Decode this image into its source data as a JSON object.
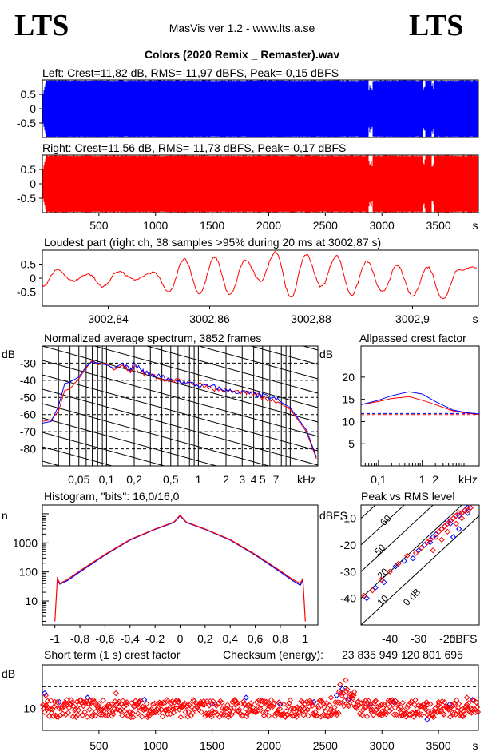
{
  "header": {
    "logo_left": "LTS",
    "logo_right": "LTS",
    "version": "MasVis ver 1.2 - www.lts.a.se",
    "filename": "Colors (2020 Remix _ Remaster).wav"
  },
  "colors": {
    "left": "#0000ff",
    "right": "#ff0000",
    "grid": "#000000"
  },
  "chart_data": [
    {
      "type": "area",
      "id": "left_waveform",
      "title": "Left: Crest=11,82 dB, RMS=-11,97 dBFS, Peak=-0,15 dBFS",
      "ytick_labels": [
        "0.5",
        "0",
        "-0.5"
      ],
      "ylim": [
        -1,
        1
      ],
      "xlim": [
        0,
        3852
      ],
      "gaps_s": [
        [
          2880,
          2920
        ],
        [
          3360,
          3380
        ],
        [
          3440,
          3460
        ]
      ]
    },
    {
      "type": "area",
      "id": "right_waveform",
      "title": "Right: Crest=11,56 dB, RMS=-11,73 dBFS, Peak=-0,17 dBFS",
      "ytick_labels": [
        "0.5",
        "0",
        "-0.5"
      ],
      "xtick_labels": [
        "500",
        "1000",
        "1500",
        "2000",
        "2500",
        "3000",
        "3500",
        "s"
      ],
      "xticks": [
        500,
        1000,
        1500,
        2000,
        2500,
        3000,
        3500
      ],
      "ylim": [
        -1,
        1
      ],
      "xlim": [
        0,
        3852
      ]
    },
    {
      "type": "line",
      "id": "loudest_part",
      "title": "Loudest part (right ch, 38 samples >95% during 20 ms at 3002,87 s)",
      "ytick_labels": [
        "0.5",
        "0",
        "-0.5"
      ],
      "xtick_labels": [
        "3002,84",
        "3002,86",
        "3002,88",
        "3002,9",
        "s"
      ],
      "xticks": [
        3002.84,
        3002.86,
        3002.88,
        3002.9
      ],
      "xlim": [
        3002.827,
        3002.913
      ],
      "ylim": [
        -1,
        1
      ],
      "series": [
        {
          "x": [
            3002.827,
            3002.83,
            3002.833,
            3002.836,
            3002.839,
            3002.842,
            3002.845,
            3002.849,
            3002.852,
            3002.855,
            3002.858,
            3002.861,
            3002.864,
            3002.867,
            3002.87,
            3002.873,
            3002.876,
            3002.879,
            3002.882,
            3002.885,
            3002.888,
            3002.891,
            3002.894,
            3002.897,
            3002.9,
            3002.903,
            3002.906,
            3002.909,
            3002.913
          ],
          "values": [
            -0.3,
            0.3,
            -0.1,
            0.15,
            -0.3,
            0.25,
            -0.05,
            0.2,
            -0.5,
            0.7,
            -0.55,
            0.75,
            -0.6,
            0.65,
            -0.1,
            0.95,
            -0.7,
            0.85,
            -0.3,
            0.8,
            -0.6,
            0.6,
            -0.5,
            0.45,
            -0.65,
            0.4,
            -0.75,
            0.3,
            0.4
          ]
        }
      ]
    },
    {
      "type": "line",
      "id": "spectrum",
      "title": "Normalized average spectrum, 3852 frames",
      "ylabel": "dB",
      "xlabel": "kHz",
      "xscale": "log",
      "xlim": [
        0.02,
        20
      ],
      "ylim": [
        -90,
        -20
      ],
      "ytick_labels": [
        "-30",
        "-40",
        "-50",
        "-60",
        "-70",
        "-80"
      ],
      "yticks": [
        -30,
        -40,
        -50,
        -60,
        -70,
        -80
      ],
      "xtick_labels": [
        "0,05",
        "0,1",
        "0,2",
        "0,5",
        "1",
        "2",
        "3",
        "4",
        "5",
        "7",
        "kHz"
      ],
      "xticks": [
        0.05,
        0.1,
        0.2,
        0.5,
        1,
        2,
        3,
        4,
        5,
        7
      ],
      "series": [
        {
          "color": "right",
          "x": [
            0.02,
            0.025,
            0.03,
            0.035,
            0.04,
            0.05,
            0.06,
            0.07,
            0.08,
            0.1,
            0.12,
            0.15,
            0.18,
            0.2,
            0.25,
            0.3,
            0.4,
            0.5,
            0.7,
            1,
            1.5,
            2,
            3,
            4,
            5,
            7,
            10,
            15,
            20
          ],
          "values": [
            -64,
            -63,
            -58,
            -46,
            -45,
            -39,
            -33,
            -28,
            -31,
            -30,
            -34,
            -31,
            -35,
            -32,
            -36,
            -37,
            -39,
            -40,
            -41,
            -42,
            -45,
            -46,
            -47,
            -48,
            -50,
            -52,
            -57,
            -70,
            -88
          ]
        },
        {
          "color": "left",
          "x": [
            0.02,
            0.025,
            0.03,
            0.035,
            0.04,
            0.05,
            0.06,
            0.07,
            0.08,
            0.1,
            0.12,
            0.15,
            0.18,
            0.2,
            0.25,
            0.3,
            0.4,
            0.5,
            0.7,
            1,
            1.5,
            2,
            3,
            4,
            5,
            7,
            10,
            15,
            20
          ],
          "values": [
            -65,
            -64,
            -55,
            -42,
            -41,
            -38,
            -32,
            -29,
            -30,
            -31,
            -33,
            -30,
            -34,
            -30,
            -35,
            -37,
            -38,
            -40,
            -41,
            -43,
            -44,
            -46,
            -47,
            -48,
            -49,
            -51,
            -56,
            -69,
            -87
          ]
        }
      ]
    },
    {
      "type": "line",
      "id": "allpassed_crest",
      "title": "Allpassed crest factor",
      "ylabel": "dB",
      "xlabel": "kHz",
      "xscale": "log",
      "xlim": [
        0.04,
        20
      ],
      "ylim": [
        0,
        27
      ],
      "ytick_labels": [
        "20",
        "15",
        "10",
        "5"
      ],
      "yticks": [
        20,
        15,
        10,
        5
      ],
      "xtick_labels": [
        "0,1",
        "1",
        "2",
        "kHz"
      ],
      "xticks": [
        0.1,
        1,
        2
      ],
      "series": [
        {
          "color": "right",
          "x": [
            0.04,
            0.1,
            0.2,
            0.5,
            1,
            2,
            5,
            10,
            20
          ],
          "values": [
            13.8,
            14.5,
            15.2,
            15.6,
            14.8,
            13.8,
            12.4,
            11.9,
            11.6
          ]
        },
        {
          "color": "left",
          "x": [
            0.04,
            0.1,
            0.2,
            0.5,
            1,
            2,
            5,
            10,
            20
          ],
          "values": [
            13.8,
            14.8,
            15.8,
            16.7,
            16.2,
            14.5,
            12.6,
            12.0,
            11.7
          ]
        }
      ],
      "reference_lines": [
        11.82,
        11.56
      ]
    },
    {
      "type": "line",
      "id": "histogram",
      "title": "Histogram, \"bits\": 16,0/16,0",
      "ylabel": "n",
      "yscale": "log",
      "xlim": [
        -1.1,
        1.1
      ],
      "ylim": [
        1.5,
        20000
      ],
      "ytick_labels": [
        "1000",
        "100",
        "10"
      ],
      "yticks": [
        1000,
        100,
        10
      ],
      "xtick_labels": [
        "-1",
        "-0,8",
        "-0,6",
        "-0,4",
        "-0,2",
        "0",
        "0,2",
        "0,4",
        "0,6",
        "0,8",
        "1"
      ],
      "xticks": [
        -1,
        -0.8,
        -0.6,
        -0.4,
        -0.2,
        0,
        0.2,
        0.4,
        0.6,
        0.8,
        1
      ],
      "series": [
        {
          "color": "right",
          "x": [
            -1,
            -0.98,
            -0.96,
            -0.9,
            -0.8,
            -0.6,
            -0.4,
            -0.2,
            -0.05,
            0,
            0.05,
            0.2,
            0.4,
            0.6,
            0.8,
            0.9,
            0.96,
            0.98,
            1
          ],
          "values": [
            2,
            60,
            40,
            55,
            110,
            400,
            1300,
            3000,
            5200,
            9000,
            5200,
            3000,
            1300,
            400,
            110,
            55,
            40,
            60,
            2
          ]
        },
        {
          "color": "left",
          "x": [
            -0.98,
            -0.96,
            -0.9,
            -0.8,
            -0.6,
            -0.4,
            -0.2,
            -0.05,
            0,
            0.05,
            0.2,
            0.4,
            0.6,
            0.8,
            0.9,
            0.96,
            0.98
          ],
          "values": [
            55,
            38,
            50,
            100,
            380,
            1250,
            2900,
            5000,
            8500,
            5000,
            2900,
            1250,
            380,
            100,
            50,
            35,
            50
          ]
        }
      ]
    },
    {
      "type": "scatter",
      "id": "peak_vs_rms",
      "title": "Peak vs RMS level",
      "ylabel": "dBFS",
      "xlabel": "dBFS",
      "xlim": [
        -50,
        -9
      ],
      "ylim": [
        -50,
        -5
      ],
      "ytick_labels": [
        "-10",
        "-20",
        "-30",
        "-40"
      ],
      "yticks": [
        -10,
        -20,
        -30,
        -40
      ],
      "xtick_labels": [
        "-40",
        "-30",
        "-20",
        "dBFS"
      ],
      "xticks": [
        -40,
        -30,
        -20
      ],
      "diagonal_labels": [
        "60",
        "50",
        "20",
        "10",
        "0 dB"
      ],
      "series": [
        {
          "color": "left",
          "x": [
            -48,
            -45,
            -42,
            -38,
            -35,
            -32,
            -30,
            -28,
            -26,
            -25,
            -24,
            -22,
            -21,
            -20,
            -19,
            -18,
            -17,
            -16,
            -15,
            -14,
            -13,
            -13,
            -12,
            -16,
            -18
          ],
          "y": [
            -40,
            -36,
            -34,
            -28,
            -26,
            -25,
            -22,
            -20,
            -19,
            -17,
            -16,
            -14,
            -13,
            -11,
            -12,
            -10,
            -9,
            -9,
            -8,
            -7,
            -8,
            -6,
            -6,
            -14,
            -17
          ]
        },
        {
          "color": "right",
          "x": [
            -49,
            -46,
            -43,
            -40,
            -37,
            -34,
            -31,
            -29,
            -27,
            -26,
            -24,
            -23,
            -22,
            -21,
            -20,
            -19,
            -18,
            -17,
            -16,
            -15,
            -14,
            -13,
            -12,
            -25,
            -20,
            -22,
            -17,
            -15
          ],
          "y": [
            -39,
            -37,
            -33,
            -30,
            -27,
            -24,
            -23,
            -21,
            -19,
            -18,
            -17,
            -15,
            -14,
            -13,
            -12,
            -11,
            -10,
            -9,
            -8,
            -8,
            -7,
            -7,
            -6,
            -22,
            -15,
            -18,
            -12,
            -10
          ]
        }
      ]
    },
    {
      "type": "scatter",
      "id": "short_term_crest",
      "title": "Short term (1 s) crest factor",
      "checksum_label": "Checksum (energy):",
      "checksum_value": "23 835 949 120 801 695",
      "ylabel": "dB",
      "ytick_labels": [
        "10"
      ],
      "yticks": [
        10
      ],
      "xtick_labels": [
        "500",
        "1000",
        "1500",
        "2000",
        "2500",
        "3000",
        "3500",
        "s"
      ],
      "xticks": [
        500,
        1000,
        1500,
        2000,
        2500,
        3000,
        3500
      ],
      "xlim": [
        0,
        3852
      ],
      "ylim": [
        5,
        20
      ],
      "dashed_line": 15,
      "series": [
        {
          "color": "left",
          "x": [
            20,
            150,
            400,
            700,
            900,
            1200,
            1500,
            1800,
            2100,
            2400,
            2600,
            2650,
            2700,
            2900,
            3100,
            3400,
            3600,
            3800
          ],
          "y": [
            13.5,
            11.5,
            12.5,
            11.0,
            12.0,
            11.5,
            11.0,
            12.5,
            11.0,
            11.5,
            13.0,
            14.5,
            12.0,
            11.0,
            11.5,
            7.5,
            11.0,
            12.0
          ]
        },
        {
          "color": "right",
          "x": [
            30,
            200,
            450,
            650,
            850,
            1100,
            1400,
            1700,
            2000,
            2300,
            2550,
            2630,
            2680,
            2750,
            3000,
            3300,
            3500,
            3750
          ],
          "y": [
            13.0,
            11.0,
            12.0,
            13.5,
            11.5,
            12.0,
            11.5,
            12.0,
            11.0,
            11.5,
            12.5,
            15.5,
            16.5,
            13.0,
            11.0,
            9.0,
            11.5,
            12.5
          ]
        }
      ]
    }
  ]
}
